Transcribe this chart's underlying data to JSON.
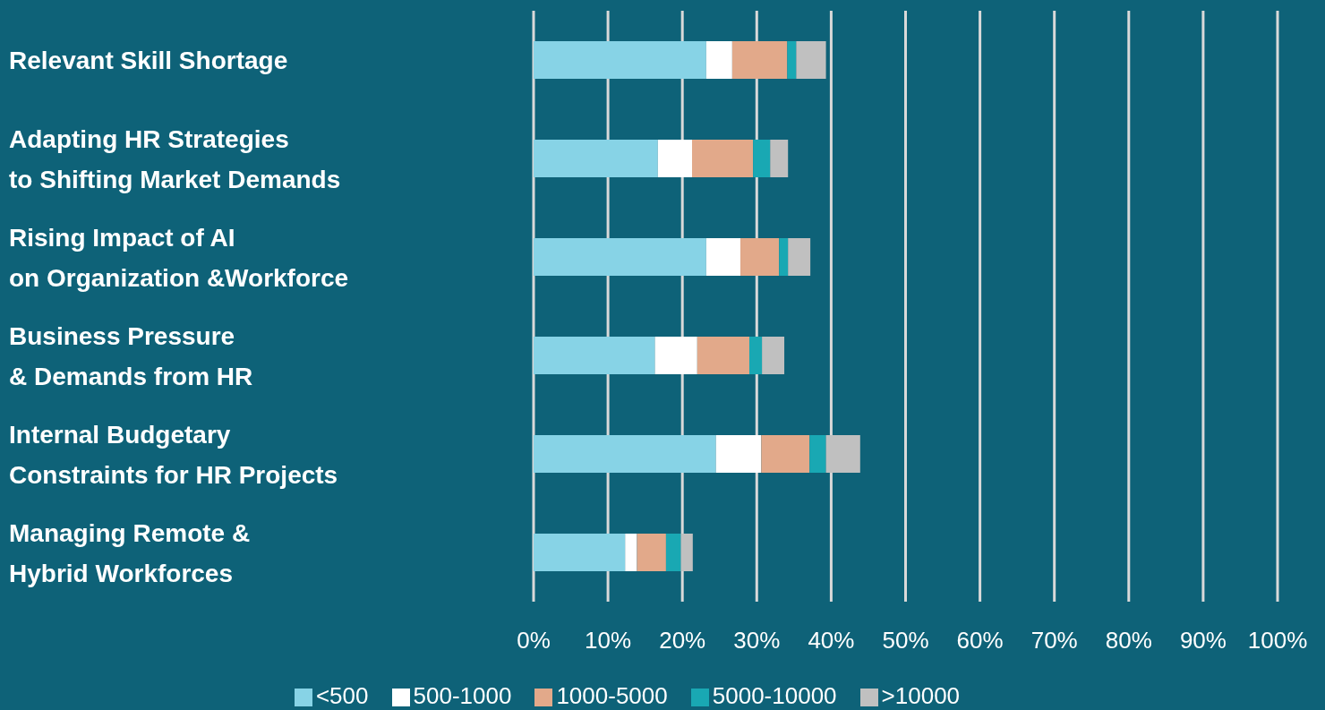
{
  "chart_data": {
    "type": "bar",
    "orientation": "horizontal",
    "stacked": true,
    "categories": [
      "Relevant Skill Shortage",
      "Adapting HR Strategies\nto Shifting Market Demands",
      "Rising Impact of AI\non Organization &Workforce",
      "Business Pressure\n& Demands from HR",
      "Internal Budgetary\nConstraints for HR Projects",
      "Managing Remote &\nHybrid Workforces"
    ],
    "series": [
      {
        "name": "<500",
        "color": "#87d3e6",
        "values": [
          23.2,
          16.7,
          23.2,
          16.3,
          24.5,
          12.3
        ]
      },
      {
        "name": "500-1000",
        "color": "#ffffff",
        "values": [
          3.5,
          4.6,
          4.6,
          5.7,
          6.1,
          1.6
        ]
      },
      {
        "name": "1000-5000",
        "color": "#e2a98a",
        "values": [
          7.4,
          8.2,
          5.2,
          7.0,
          6.5,
          3.9
        ]
      },
      {
        "name": "5000-10000",
        "color": "#19a8b3",
        "values": [
          1.2,
          2.3,
          1.2,
          1.7,
          2.2,
          2.0
        ]
      },
      {
        "name": ">10000",
        "color": "#c0c0c0",
        "values": [
          4.0,
          2.4,
          3.0,
          3.0,
          4.6,
          1.6
        ]
      }
    ],
    "xlim": [
      0,
      100
    ],
    "xticks": [
      {
        "value": 0,
        "label": "0%"
      },
      {
        "value": 10,
        "label": "10%"
      },
      {
        "value": 20,
        "label": "20%"
      },
      {
        "value": 30,
        "label": "30%"
      },
      {
        "value": 40,
        "label": "40%"
      },
      {
        "value": 50,
        "label": "50%"
      },
      {
        "value": 60,
        "label": "60%"
      },
      {
        "value": 70,
        "label": "70%"
      },
      {
        "value": 80,
        "label": "80%"
      },
      {
        "value": 90,
        "label": "90%"
      },
      {
        "value": 100,
        "label": "100%"
      }
    ],
    "grid": "x",
    "legend": "bottom"
  }
}
